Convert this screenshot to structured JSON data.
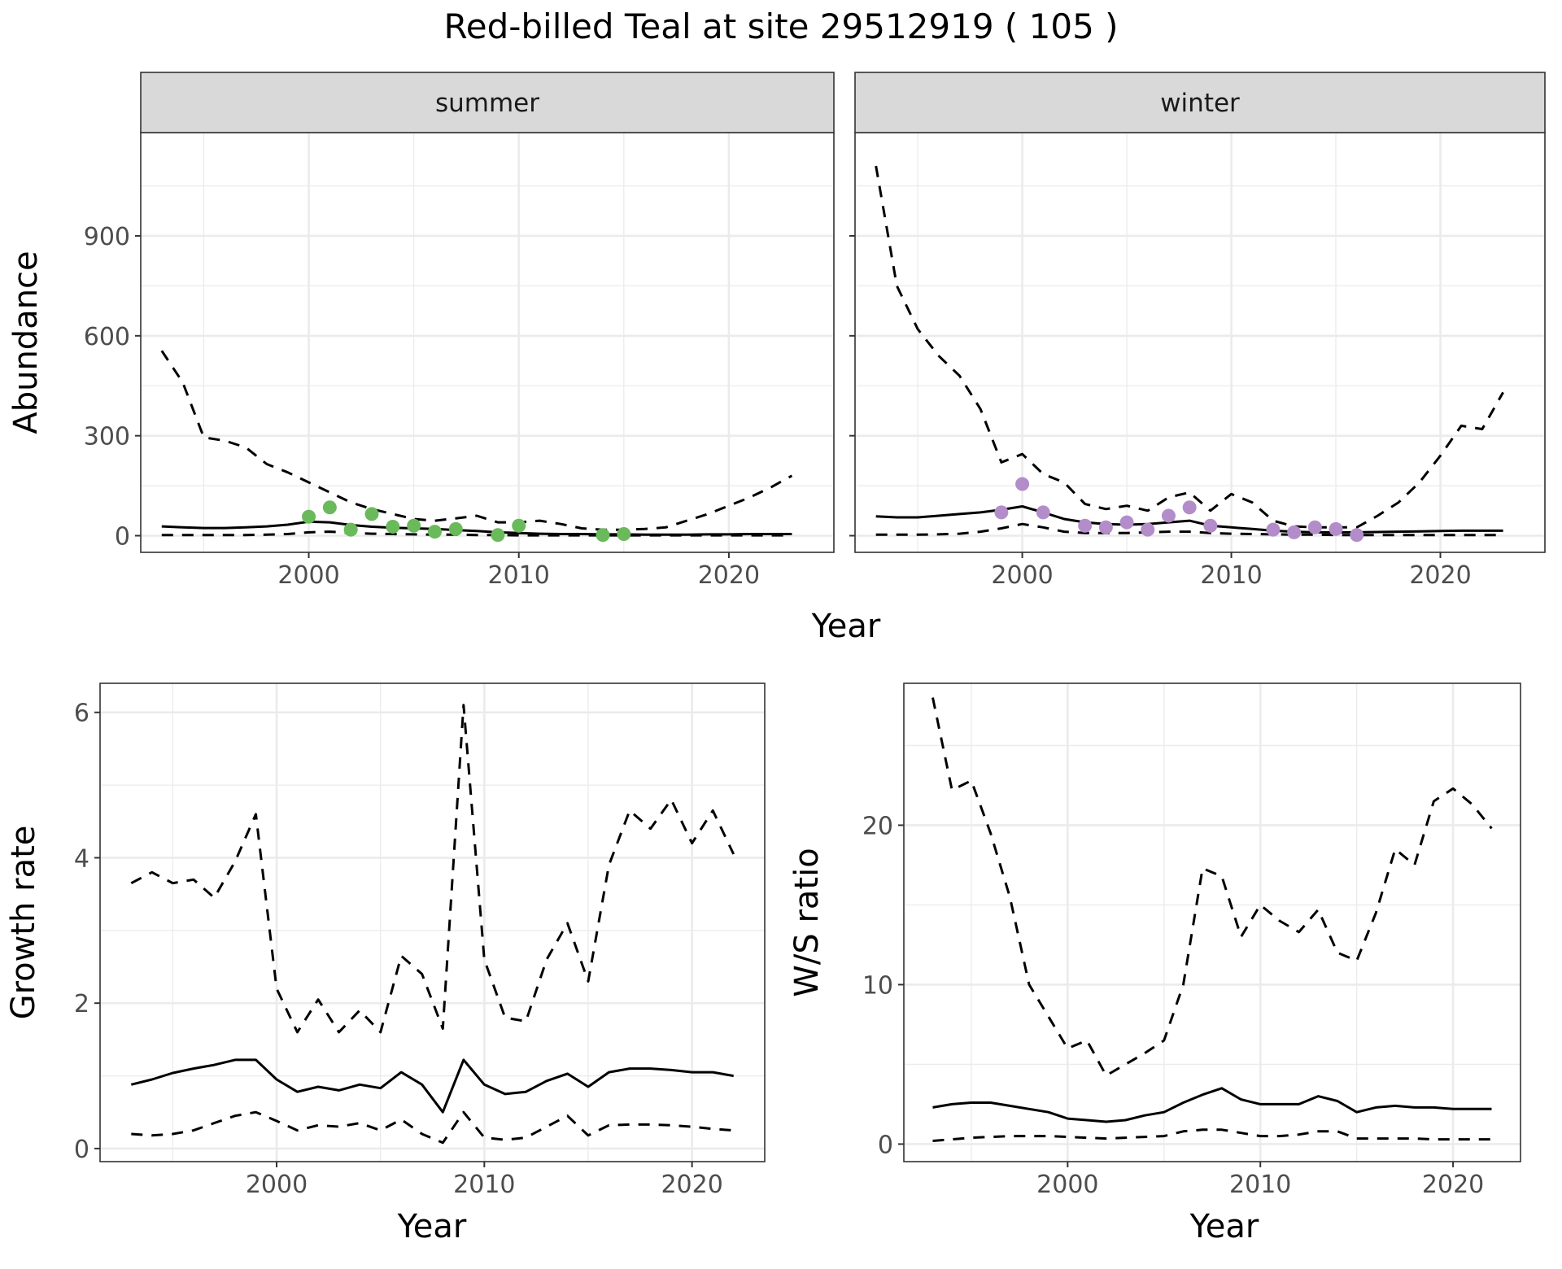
{
  "title": "Red-billed Teal at site 29512919 ( 105 )",
  "chart_data": [
    {
      "type": "line",
      "facet": "summer",
      "xlabel": "Year",
      "ylabel": "Abundance",
      "xlim": [
        1992,
        2025
      ],
      "ylim": [
        -50,
        1210
      ],
      "x_ticks": [
        2000,
        2010,
        2020
      ],
      "y_ticks": [
        0,
        300,
        600,
        900
      ],
      "grid": true,
      "series": [
        {
          "style": "solid",
          "x": [
            1993,
            1994,
            1995,
            1996,
            1997,
            1998,
            1999,
            2000,
            2001,
            2002,
            2003,
            2004,
            2005,
            2006,
            2007,
            2008,
            2009,
            2010,
            2011,
            2012,
            2013,
            2014,
            2015,
            2016,
            2017,
            2018,
            2019,
            2020,
            2021,
            2022,
            2023
          ],
          "y": [
            28,
            25,
            23,
            23,
            25,
            28,
            33,
            42,
            40,
            32,
            27,
            24,
            22,
            20,
            17,
            14,
            10,
            8,
            6,
            5,
            5,
            4,
            4,
            3,
            3,
            3,
            4,
            4,
            5,
            5,
            5
          ]
        },
        {
          "style": "dashed",
          "x": [
            1993,
            1994,
            1995,
            1996,
            1997,
            1998,
            1999,
            2000,
            2001,
            2002,
            2003,
            2004,
            2005,
            2006,
            2007,
            2008,
            2009,
            2010,
            2011,
            2012,
            2013,
            2014,
            2015,
            2016,
            2017,
            2018,
            2019,
            2020,
            2021,
            2022,
            2023
          ],
          "y": [
            555,
            460,
            295,
            285,
            265,
            215,
            190,
            160,
            130,
            100,
            80,
            65,
            50,
            45,
            52,
            60,
            40,
            40,
            45,
            35,
            22,
            18,
            18,
            20,
            25,
            45,
            65,
            90,
            115,
            145,
            180
          ]
        },
        {
          "style": "dashed",
          "x": [
            1993,
            1994,
            1995,
            1996,
            1997,
            1998,
            1999,
            2000,
            2001,
            2002,
            2003,
            2004,
            2005,
            2006,
            2007,
            2008,
            2009,
            2010,
            2011,
            2012,
            2013,
            2014,
            2015,
            2016,
            2017,
            2018,
            2019,
            2020,
            2021,
            2022,
            2023
          ],
          "y": [
            2,
            2,
            2,
            2,
            2,
            3,
            5,
            10,
            12,
            8,
            6,
            5,
            4,
            3,
            3,
            2,
            2,
            1,
            1,
            1,
            1,
            1,
            1,
            1,
            1,
            1,
            1,
            1,
            1,
            1,
            1
          ]
        }
      ],
      "points": {
        "color": "#6aba5b",
        "x": [
          2000,
          2001,
          2002,
          2003,
          2004,
          2005,
          2006,
          2007,
          2009,
          2010,
          2014,
          2015
        ],
        "y": [
          57,
          85,
          18,
          65,
          27,
          30,
          12,
          20,
          2,
          30,
          2,
          5
        ]
      }
    },
    {
      "type": "line",
      "facet": "winter",
      "xlabel": "Year",
      "ylabel": "Abundance",
      "xlim": [
        1992,
        2025
      ],
      "ylim": [
        -50,
        1210
      ],
      "x_ticks": [
        2000,
        2010,
        2020
      ],
      "y_ticks": [
        0,
        300,
        600,
        900
      ],
      "grid": true,
      "series": [
        {
          "style": "solid",
          "x": [
            1993,
            1994,
            1995,
            1996,
            1997,
            1998,
            1999,
            2000,
            2001,
            2002,
            2003,
            2004,
            2005,
            2006,
            2007,
            2008,
            2009,
            2010,
            2011,
            2012,
            2013,
            2014,
            2015,
            2016,
            2017,
            2018,
            2019,
            2020,
            2021,
            2022,
            2023
          ],
          "y": [
            58,
            55,
            55,
            60,
            65,
            70,
            78,
            88,
            70,
            50,
            40,
            35,
            33,
            35,
            40,
            45,
            30,
            25,
            20,
            15,
            12,
            10,
            10,
            10,
            11,
            12,
            13,
            14,
            15,
            15,
            15
          ]
        },
        {
          "style": "dashed",
          "x": [
            1993,
            1994,
            1995,
            1996,
            1997,
            1998,
            1999,
            2000,
            2001,
            2002,
            2003,
            2004,
            2005,
            2006,
            2007,
            2008,
            2009,
            2010,
            2011,
            2012,
            2013,
            2014,
            2015,
            2016,
            2017,
            2018,
            2019,
            2020,
            2021,
            2022,
            2023
          ],
          "y": [
            1110,
            750,
            620,
            540,
            480,
            380,
            220,
            245,
            185,
            160,
            95,
            80,
            90,
            75,
            115,
            130,
            75,
            125,
            100,
            45,
            28,
            25,
            25,
            25,
            60,
            100,
            160,
            240,
            330,
            320,
            430
          ]
        },
        {
          "style": "dashed",
          "x": [
            1993,
            1994,
            1995,
            1996,
            1997,
            1998,
            1999,
            2000,
            2001,
            2002,
            2003,
            2004,
            2005,
            2006,
            2007,
            2008,
            2009,
            2010,
            2011,
            2012,
            2013,
            2014,
            2015,
            2016,
            2017,
            2018,
            2019,
            2020,
            2021,
            2022,
            2023
          ],
          "y": [
            3,
            3,
            3,
            4,
            6,
            12,
            22,
            35,
            25,
            12,
            8,
            8,
            8,
            10,
            12,
            12,
            8,
            6,
            5,
            4,
            3,
            3,
            2,
            2,
            2,
            2,
            2,
            2,
            2,
            2,
            2
          ]
        }
      ],
      "points": {
        "color": "#b38dc9",
        "x": [
          1999,
          2000,
          2001,
          2003,
          2004,
          2005,
          2006,
          2007,
          2008,
          2009,
          2012,
          2013,
          2014,
          2015,
          2016
        ],
        "y": [
          70,
          155,
          70,
          30,
          25,
          40,
          18,
          60,
          85,
          30,
          18,
          10,
          25,
          20,
          2
        ]
      }
    },
    {
      "type": "line",
      "xlabel": "Year",
      "ylabel": "Growth rate",
      "xlim": [
        1991.5,
        2023.5
      ],
      "ylim": [
        -0.18,
        6.4
      ],
      "x_ticks": [
        2000,
        2010,
        2020
      ],
      "y_ticks": [
        0,
        2,
        4,
        6
      ],
      "grid": true,
      "series": [
        {
          "style": "solid",
          "x": [
            1993,
            1994,
            1995,
            1996,
            1997,
            1998,
            1999,
            2000,
            2001,
            2002,
            2003,
            2004,
            2005,
            2006,
            2007,
            2008,
            2009,
            2010,
            2011,
            2012,
            2013,
            2014,
            2015,
            2016,
            2017,
            2018,
            2019,
            2020,
            2021,
            2022
          ],
          "y": [
            0.88,
            0.95,
            1.04,
            1.1,
            1.15,
            1.22,
            1.22,
            0.95,
            0.78,
            0.85,
            0.8,
            0.88,
            0.83,
            1.05,
            0.88,
            0.5,
            1.22,
            0.88,
            0.75,
            0.78,
            0.93,
            1.03,
            0.85,
            1.05,
            1.1,
            1.1,
            1.08,
            1.05,
            1.05,
            1.0
          ]
        },
        {
          "style": "dashed",
          "x": [
            1993,
            1994,
            1995,
            1996,
            1997,
            1998,
            1999,
            2000,
            2001,
            2002,
            2003,
            2004,
            2005,
            2006,
            2007,
            2008,
            2009,
            2010,
            2011,
            2012,
            2013,
            2014,
            2015,
            2016,
            2017,
            2018,
            2019,
            2020,
            2021,
            2022
          ],
          "y": [
            3.65,
            3.8,
            3.65,
            3.7,
            3.45,
            3.95,
            4.6,
            2.2,
            1.6,
            2.05,
            1.6,
            1.9,
            1.6,
            2.65,
            2.4,
            1.65,
            6.1,
            2.6,
            1.8,
            1.75,
            2.6,
            3.1,
            2.3,
            3.9,
            4.65,
            4.4,
            4.8,
            4.2,
            4.65,
            4.05
          ]
        },
        {
          "style": "dashed",
          "x": [
            1993,
            1994,
            1995,
            1996,
            1997,
            1998,
            1999,
            2000,
            2001,
            2002,
            2003,
            2004,
            2005,
            2006,
            2007,
            2008,
            2009,
            2010,
            2011,
            2012,
            2013,
            2014,
            2015,
            2016,
            2017,
            2018,
            2019,
            2020,
            2021,
            2022
          ],
          "y": [
            0.2,
            0.18,
            0.2,
            0.25,
            0.35,
            0.45,
            0.5,
            0.38,
            0.25,
            0.32,
            0.3,
            0.35,
            0.25,
            0.4,
            0.2,
            0.08,
            0.5,
            0.15,
            0.12,
            0.15,
            0.3,
            0.45,
            0.18,
            0.32,
            0.33,
            0.33,
            0.32,
            0.3,
            0.27,
            0.25
          ]
        }
      ]
    },
    {
      "type": "line",
      "xlabel": "Year",
      "ylabel": "W/S ratio",
      "xlim": [
        1991.5,
        2023.5
      ],
      "ylim": [
        -1.1,
        28.9
      ],
      "x_ticks": [
        2000,
        2010,
        2020
      ],
      "y_ticks": [
        0,
        10,
        20
      ],
      "grid": true,
      "series": [
        {
          "style": "solid",
          "x": [
            1993,
            1994,
            1995,
            1996,
            1997,
            1998,
            1999,
            2000,
            2001,
            2002,
            2003,
            2004,
            2005,
            2006,
            2007,
            2008,
            2009,
            2010,
            2011,
            2012,
            2013,
            2014,
            2015,
            2016,
            2017,
            2018,
            2019,
            2020,
            2021,
            2022
          ],
          "y": [
            2.3,
            2.5,
            2.6,
            2.6,
            2.4,
            2.2,
            2.0,
            1.6,
            1.5,
            1.4,
            1.5,
            1.8,
            2.0,
            2.6,
            3.1,
            3.5,
            2.8,
            2.5,
            2.5,
            2.5,
            3.0,
            2.7,
            2.0,
            2.3,
            2.4,
            2.3,
            2.3,
            2.2,
            2.2,
            2.2
          ]
        },
        {
          "style": "dashed",
          "x": [
            1993,
            1994,
            1995,
            1996,
            1997,
            1998,
            1999,
            2000,
            2001,
            2002,
            2003,
            2004,
            2005,
            2006,
            2007,
            2008,
            2009,
            2010,
            2011,
            2012,
            2013,
            2014,
            2015,
            2016,
            2017,
            2018,
            2019,
            2020,
            2021,
            2022
          ],
          "y": [
            28,
            22.2,
            22.8,
            19.5,
            15.5,
            10,
            8,
            6,
            6.5,
            4.3,
            5,
            5.7,
            6.5,
            10,
            17.3,
            16.8,
            13,
            15,
            14,
            13.3,
            14.7,
            12,
            11.5,
            14.5,
            18.5,
            17.5,
            21.5,
            22.3,
            21.3,
            19.8
          ]
        },
        {
          "style": "dashed",
          "x": [
            1993,
            1994,
            1995,
            1996,
            1997,
            1998,
            1999,
            2000,
            2001,
            2002,
            2003,
            2004,
            2005,
            2006,
            2007,
            2008,
            2009,
            2010,
            2011,
            2012,
            2013,
            2014,
            2015,
            2016,
            2017,
            2018,
            2019,
            2020,
            2021,
            2022
          ],
          "y": [
            0.2,
            0.3,
            0.4,
            0.45,
            0.5,
            0.5,
            0.5,
            0.45,
            0.4,
            0.35,
            0.4,
            0.45,
            0.5,
            0.8,
            0.9,
            0.9,
            0.7,
            0.5,
            0.5,
            0.6,
            0.8,
            0.8,
            0.35,
            0.35,
            0.35,
            0.35,
            0.3,
            0.3,
            0.3,
            0.3
          ]
        }
      ]
    }
  ]
}
